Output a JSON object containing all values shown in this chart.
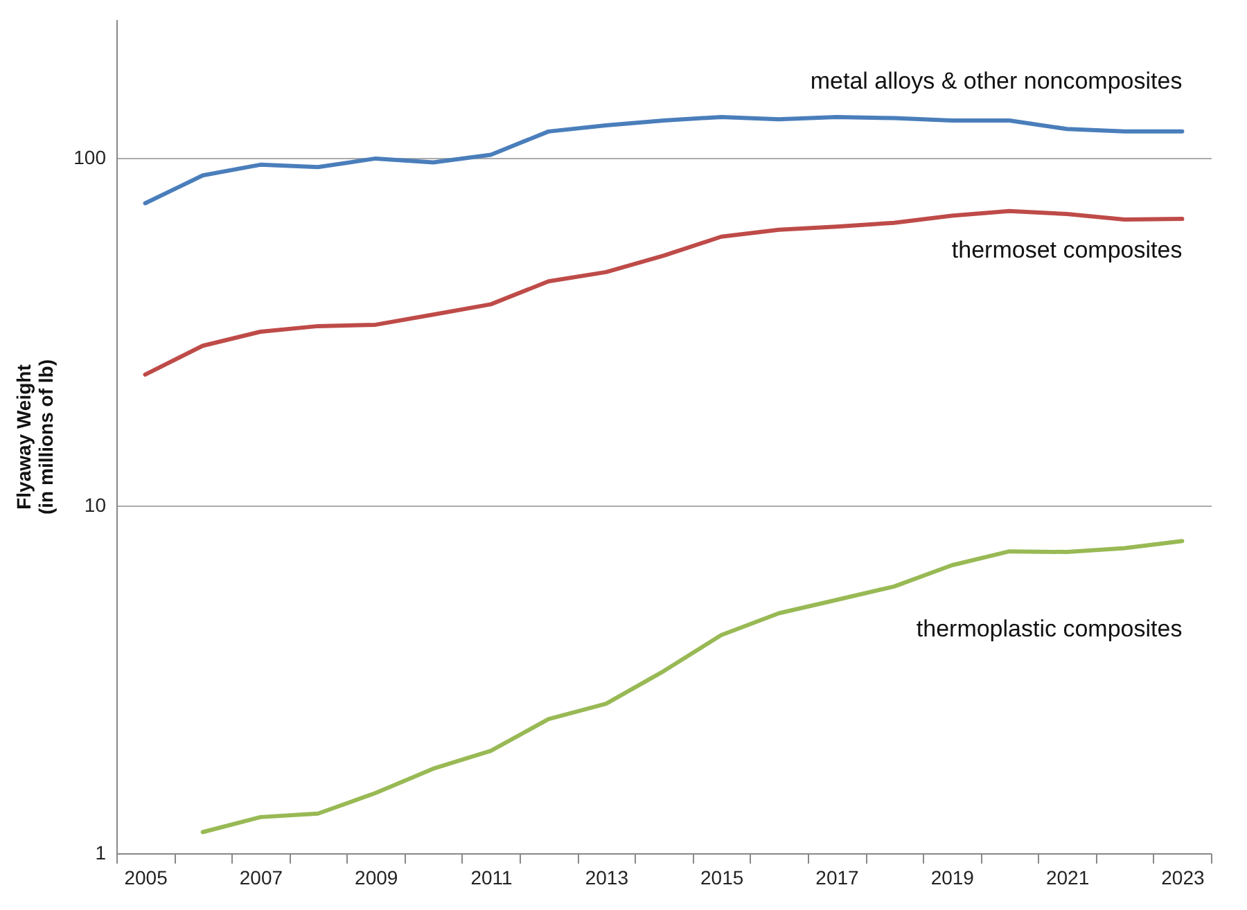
{
  "chart_data": {
    "type": "line",
    "ylabel": "Flyaway Weight (in millions of lb)",
    "categories": [
      "2005",
      null,
      "2007",
      null,
      "2009",
      null,
      "2011",
      null,
      "2013",
      null,
      "2015",
      null,
      "2017",
      null,
      "2019",
      null,
      "2021",
      null,
      "2023"
    ],
    "series": [
      {
        "name": "metal alloys & other noncomposites",
        "color": "#4a7ebb",
        "values": [
          74,
          89,
          95.5,
          94,
          99.5,
          97,
          102,
          119,
          124,
          128,
          131,
          129,
          131,
          130,
          128,
          128,
          121,
          119,
          119
        ]
      },
      {
        "name": "thermoset composites",
        "color": "#be4b48",
        "values": [
          23.8,
          28.8,
          31.6,
          32.8,
          33.1,
          35.4,
          37.9,
          44.1,
          46.9,
          52.3,
          59.3,
          62.1,
          63.4,
          65,
          68.1,
          70.3,
          68.9,
          66.4,
          66.7
        ]
      },
      {
        "name": "thermoplastic composites",
        "color": "#98b954",
        "values": [
          null,
          1.15,
          1.27,
          1.3,
          1.49,
          1.75,
          1.97,
          2.43,
          2.69,
          3.34,
          4.24,
          4.9,
          5.35,
          5.85,
          6.73,
          7.38,
          7.35,
          7.54,
          7.9
        ]
      }
    ],
    "log": "y",
    "ylim": [
      1,
      250
    ],
    "yticks": [
      1,
      10,
      100
    ],
    "grid": "y",
    "marker": "none",
    "line_style": "solid"
  }
}
